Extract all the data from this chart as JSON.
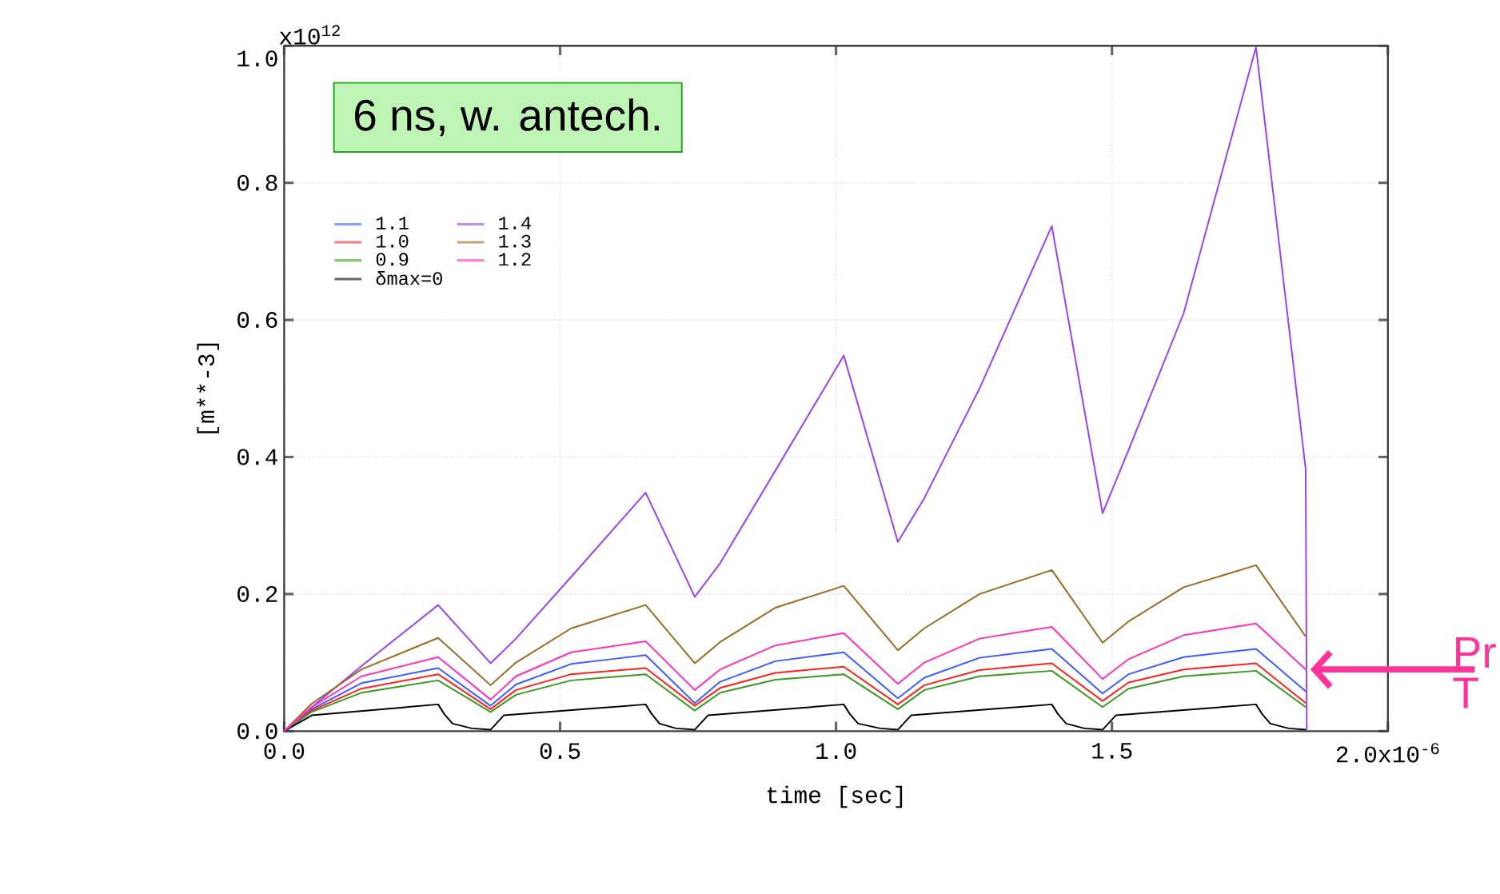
{
  "chart_data": {
    "type": "line",
    "xlabel": "time [sec]",
    "ylabel": "[m**-3]",
    "annotations": [
      "6 ns, w. antech.",
      {
        "text": "Pr",
        "x": 1.851,
        "y": 0.09
      },
      "T",
      "x10$^{-6}$",
      "x10$^{12}$"
    ],
    "xlim": [
      0,
      2.0
    ],
    "ylim": [
      0,
      1.0
    ],
    "xticks": [
      {
        "value": 0,
        "label": "0.0"
      },
      0.5,
      {
        "value": 1.0,
        "label": "1.0"
      },
      1.5,
      {
        "value": 2.0,
        "label": "2.0"
      }
    ],
    "yticks": [
      {
        "value": 0,
        "label": "0.0"
      },
      0.2,
      0.4,
      0.6,
      0.8,
      {
        "value": 1.0,
        "label": "1.0"
      }
    ],
    "grid": true,
    "legend": "top left",
    "line_style": "solid",
    "x": [
      0,
      0.05,
      0.14,
      0.279,
      0.374,
      0.42,
      0.52,
      0.655,
      0.744,
      0.79,
      0.89,
      1.014,
      1.112,
      1.16,
      1.26,
      1.391,
      1.483,
      1.53,
      1.63,
      1.761,
      1.851
    ],
    "series": [
      {
        "name": "1.1",
        "color": "#3a5cff",
        "values": [
          0,
          0.032,
          0.07,
          0.092,
          0.037,
          0.068,
          0.098,
          0.111,
          0.041,
          0.072,
          0.102,
          0.115,
          0.048,
          0.078,
          0.107,
          0.12,
          0.055,
          0.083,
          0.108,
          0.12,
          0.058
        ]
      },
      {
        "name": "1.0",
        "color": "#ff2020",
        "values": [
          0,
          0.03,
          0.062,
          0.083,
          0.032,
          0.06,
          0.083,
          0.092,
          0.037,
          0.063,
          0.085,
          0.094,
          0.039,
          0.067,
          0.089,
          0.099,
          0.044,
          0.071,
          0.09,
          0.099,
          0.041
        ]
      },
      {
        "name": "0.9",
        "color": "#3a9a20",
        "values": [
          0,
          0.028,
          0.056,
          0.074,
          0.028,
          0.053,
          0.074,
          0.083,
          0.03,
          0.056,
          0.075,
          0.083,
          0.032,
          0.06,
          0.08,
          0.088,
          0.035,
          0.062,
          0.08,
          0.088,
          0.035
        ]
      },
      {
        "name": "δmax=0",
        "color": "#000000",
        "x": [
          0,
          0.05,
          0.279,
          0.29,
          0.305,
          0.34,
          0.374,
          0.398,
          0.655,
          0.666,
          0.68,
          0.71,
          0.744,
          0.768,
          1.014,
          1.025,
          1.04,
          1.08,
          1.112,
          1.136,
          1.391,
          1.402,
          1.417,
          1.45,
          1.483,
          1.507,
          1.761,
          1.772,
          1.787,
          1.82,
          1.851
        ],
        "values": [
          0,
          0.023,
          0.039,
          0.025,
          0.011,
          0.004,
          0.002,
          0.023,
          0.039,
          0.025,
          0.011,
          0.004,
          0.002,
          0.023,
          0.039,
          0.025,
          0.011,
          0.004,
          0.002,
          0.023,
          0.039,
          0.025,
          0.011,
          0.004,
          0.002,
          0.023,
          0.039,
          0.025,
          0.011,
          0.004,
          0.002
        ]
      },
      {
        "name": "1.4",
        "color": "#9a40f0",
        "x": [
          0,
          0.05,
          0.14,
          0.279,
          0.374,
          0.42,
          0.52,
          0.655,
          0.744,
          0.79,
          0.89,
          1.014,
          1.112,
          1.16,
          1.26,
          1.391,
          1.483,
          1.53,
          1.63,
          1.761,
          1.851,
          1.853
        ],
        "values": [
          0,
          0.035,
          0.095,
          0.184,
          0.099,
          0.135,
          0.225,
          0.348,
          0.196,
          0.245,
          0.38,
          0.548,
          0.276,
          0.34,
          0.5,
          0.737,
          0.318,
          0.41,
          0.61,
          0.998,
          0.382,
          0
        ]
      },
      {
        "name": "1.3",
        "color": "#9a6a20",
        "values": [
          0,
          0.04,
          0.09,
          0.136,
          0.067,
          0.1,
          0.15,
          0.184,
          0.099,
          0.13,
          0.18,
          0.212,
          0.118,
          0.15,
          0.2,
          0.235,
          0.129,
          0.16,
          0.21,
          0.242,
          0.138
        ]
      },
      {
        "name": "1.2",
        "color": "#ff30c0",
        "values": [
          0,
          0.035,
          0.08,
          0.108,
          0.046,
          0.08,
          0.115,
          0.131,
          0.06,
          0.09,
          0.125,
          0.143,
          0.069,
          0.1,
          0.135,
          0.152,
          0.076,
          0.105,
          0.14,
          0.157,
          0.09
        ]
      }
    ]
  }
}
